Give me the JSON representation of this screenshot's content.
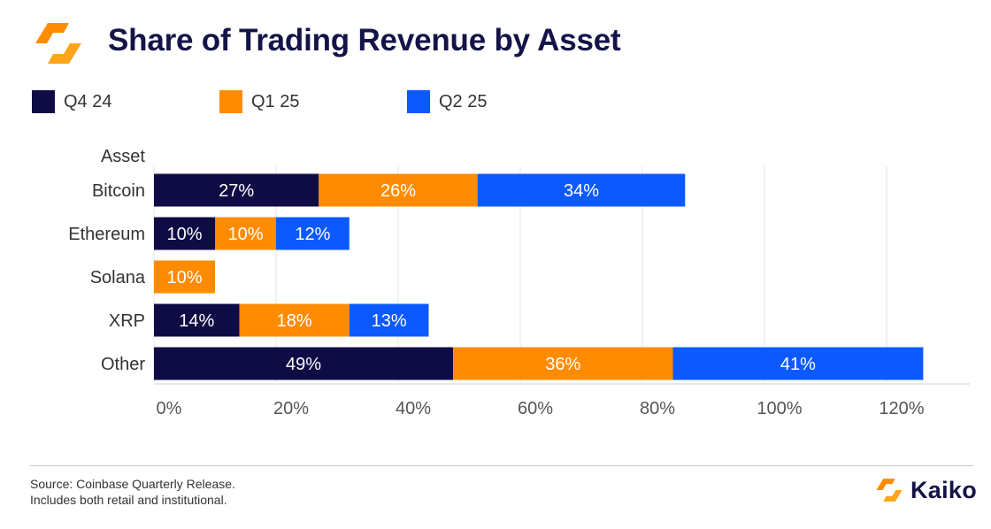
{
  "header": {
    "title": "Share of Trading Revenue by Asset",
    "logo_icon": "kaiko-logo-icon"
  },
  "chart_data": {
    "type": "bar",
    "orientation": "horizontal",
    "stacked": true,
    "title": "Share of Trading Revenue by Asset",
    "ylabel": "Asset",
    "xlabel": "",
    "categories": [
      "Bitcoin",
      "Ethereum",
      "Solana",
      "XRP",
      "Other"
    ],
    "series": [
      {
        "name": "Q4 24",
        "color": "#0f0c45",
        "values": [
          27,
          10,
          null,
          14,
          49
        ]
      },
      {
        "name": "Q1 25",
        "color": "#ff8c00",
        "values": [
          26,
          10,
          10,
          18,
          36
        ]
      },
      {
        "name": "Q2 25",
        "color": "#0c5aff",
        "values": [
          34,
          12,
          null,
          13,
          41
        ]
      }
    ],
    "xlim": [
      0,
      132
    ],
    "xticks": [
      0,
      20,
      40,
      60,
      80,
      100,
      120
    ],
    "tick_suffix": "%",
    "value_suffix": "%",
    "grid": true,
    "legend": "top-left"
  },
  "footer": {
    "source_line1": "Source: Coinbase Quarterly Release.",
    "source_line2": "Includes both retail and institutional.",
    "brand_name": "Kaiko",
    "brand_icon": "kaiko-brand-icon"
  }
}
